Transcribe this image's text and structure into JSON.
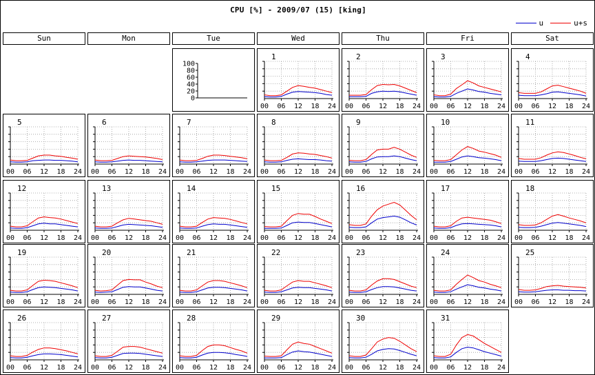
{
  "title": "CPU [%] - 2009/07 (15) [king]",
  "legend": [
    {
      "name": "u",
      "color": "#0000cc"
    },
    {
      "name": "u+s",
      "color": "#ee0000"
    }
  ],
  "weekdays": [
    "Sun",
    "Mon",
    "Tue",
    "Wed",
    "Thu",
    "Fri",
    "Sat"
  ],
  "first_weekday": 3,
  "key_cell": {
    "weekday": 2,
    "yticks": [
      "100",
      "80",
      "60",
      "40",
      "20",
      "0"
    ]
  },
  "x_ticks": [
    "00",
    "06",
    "12",
    "18",
    "24"
  ],
  "colors": {
    "u": "#0000cc",
    "us": "#ee0000",
    "grid": "#999999"
  },
  "chart_data": {
    "type": "line",
    "title": "CPU [%] - 2009/07 (15) [king]",
    "x": [
      0,
      2,
      4,
      6,
      8,
      10,
      12,
      14,
      16,
      18,
      20,
      22,
      24
    ],
    "ylim": [
      0,
      100
    ],
    "days": [
      {
        "day": "1",
        "u": [
          5,
          4,
          4,
          6,
          12,
          17,
          19,
          18,
          17,
          16,
          14,
          11,
          9
        ],
        "us": [
          10,
          8,
          8,
          10,
          20,
          30,
          35,
          33,
          30,
          28,
          24,
          20,
          16
        ]
      },
      {
        "day": "2",
        "u": [
          5,
          5,
          5,
          6,
          14,
          18,
          20,
          19,
          20,
          18,
          15,
          12,
          9
        ],
        "us": [
          9,
          9,
          9,
          11,
          24,
          35,
          38,
          37,
          38,
          34,
          28,
          22,
          16
        ]
      },
      {
        "day": "3",
        "u": [
          5,
          4,
          4,
          6,
          14,
          20,
          26,
          23,
          19,
          17,
          14,
          12,
          10
        ],
        "us": [
          10,
          8,
          8,
          12,
          27,
          37,
          48,
          42,
          34,
          30,
          26,
          22,
          18
        ]
      },
      {
        "day": "4",
        "u": [
          9,
          8,
          8,
          8,
          10,
          13,
          17,
          18,
          16,
          14,
          12,
          10,
          7
        ],
        "us": [
          16,
          14,
          14,
          14,
          18,
          26,
          34,
          36,
          32,
          28,
          24,
          20,
          14
        ]
      },
      {
        "day": "5",
        "u": [
          6,
          5,
          5,
          6,
          9,
          10,
          11,
          11,
          10,
          10,
          9,
          8,
          6
        ],
        "us": [
          11,
          9,
          9,
          10,
          16,
          22,
          24,
          24,
          22,
          21,
          18,
          16,
          13
        ]
      },
      {
        "day": "6",
        "u": [
          6,
          5,
          5,
          6,
          8,
          10,
          11,
          10,
          10,
          9,
          8,
          7,
          6
        ],
        "us": [
          11,
          9,
          9,
          10,
          15,
          20,
          22,
          21,
          20,
          19,
          17,
          15,
          12
        ]
      },
      {
        "day": "7",
        "u": [
          6,
          5,
          5,
          6,
          8,
          10,
          11,
          11,
          11,
          10,
          9,
          8,
          7
        ],
        "us": [
          11,
          9,
          9,
          10,
          15,
          21,
          24,
          24,
          23,
          21,
          19,
          17,
          14
        ]
      },
      {
        "day": "8",
        "u": [
          6,
          5,
          5,
          6,
          10,
          13,
          14,
          13,
          12,
          12,
          11,
          9,
          8
        ],
        "us": [
          11,
          9,
          9,
          10,
          18,
          27,
          30,
          29,
          27,
          26,
          23,
          20,
          16
        ]
      },
      {
        "day": "9",
        "u": [
          6,
          5,
          5,
          7,
          14,
          19,
          20,
          20,
          22,
          20,
          16,
          12,
          9
        ],
        "us": [
          10,
          9,
          9,
          12,
          26,
          38,
          40,
          40,
          45,
          40,
          32,
          24,
          18
        ]
      },
      {
        "day": "10",
        "u": [
          5,
          5,
          5,
          7,
          13,
          19,
          22,
          20,
          17,
          16,
          14,
          12,
          9
        ],
        "us": [
          10,
          9,
          9,
          12,
          25,
          38,
          47,
          42,
          35,
          32,
          28,
          24,
          18
        ]
      },
      {
        "day": "11",
        "u": [
          8,
          7,
          7,
          7,
          9,
          12,
          15,
          16,
          15,
          13,
          11,
          9,
          7
        ],
        "us": [
          15,
          13,
          13,
          13,
          17,
          24,
          30,
          33,
          31,
          27,
          23,
          18,
          14
        ]
      },
      {
        "day": "12",
        "u": [
          6,
          5,
          5,
          7,
          12,
          17,
          19,
          17,
          17,
          15,
          13,
          11,
          9
        ],
        "us": [
          11,
          9,
          9,
          12,
          23,
          33,
          36,
          34,
          33,
          30,
          26,
          22,
          18
        ]
      },
      {
        "day": "13",
        "u": [
          6,
          5,
          5,
          6,
          10,
          14,
          16,
          15,
          14,
          13,
          12,
          10,
          8
        ],
        "us": [
          11,
          9,
          9,
          11,
          20,
          28,
          32,
          30,
          28,
          26,
          24,
          20,
          16
        ]
      },
      {
        "day": "14",
        "u": [
          6,
          5,
          5,
          6,
          11,
          15,
          17,
          16,
          16,
          14,
          12,
          10,
          8
        ],
        "us": [
          11,
          9,
          9,
          11,
          21,
          30,
          34,
          33,
          32,
          29,
          25,
          21,
          17
        ]
      },
      {
        "day": "15",
        "u": [
          5,
          5,
          5,
          6,
          13,
          20,
          22,
          21,
          21,
          18,
          15,
          12,
          9
        ],
        "us": [
          10,
          9,
          9,
          11,
          26,
          40,
          45,
          43,
          43,
          37,
          30,
          24,
          18
        ]
      },
      {
        "day": "16",
        "u": [
          8,
          7,
          7,
          9,
          20,
          30,
          34,
          36,
          38,
          35,
          28,
          20,
          14
        ],
        "us": [
          15,
          13,
          13,
          17,
          38,
          55,
          65,
          70,
          75,
          68,
          54,
          40,
          28
        ]
      },
      {
        "day": "17",
        "u": [
          6,
          5,
          5,
          7,
          13,
          17,
          18,
          17,
          16,
          15,
          14,
          12,
          9
        ],
        "us": [
          11,
          9,
          9,
          12,
          24,
          33,
          35,
          33,
          31,
          29,
          27,
          23,
          18
        ]
      },
      {
        "day": "18",
        "u": [
          8,
          7,
          7,
          8,
          11,
          15,
          19,
          21,
          19,
          17,
          15,
          13,
          10
        ],
        "us": [
          15,
          13,
          13,
          14,
          20,
          29,
          38,
          42,
          38,
          33,
          29,
          25,
          20
        ]
      },
      {
        "day": "19",
        "u": [
          6,
          5,
          5,
          7,
          13,
          18,
          20,
          19,
          18,
          16,
          14,
          12,
          9
        ],
        "us": [
          11,
          9,
          9,
          12,
          24,
          35,
          38,
          37,
          35,
          31,
          27,
          23,
          18
        ]
      },
      {
        "day": "20",
        "u": [
          6,
          5,
          6,
          7,
          13,
          19,
          21,
          20,
          20,
          17,
          14,
          11,
          9
        ],
        "us": [
          11,
          9,
          10,
          12,
          25,
          37,
          40,
          39,
          39,
          33,
          28,
          22,
          18
        ]
      },
      {
        "day": "21",
        "u": [
          6,
          5,
          5,
          7,
          12,
          17,
          19,
          19,
          18,
          16,
          14,
          12,
          9
        ],
        "us": [
          11,
          9,
          9,
          12,
          23,
          33,
          37,
          37,
          35,
          31,
          27,
          23,
          18
        ]
      },
      {
        "day": "22",
        "u": [
          6,
          5,
          5,
          7,
          12,
          17,
          19,
          18,
          18,
          16,
          14,
          12,
          9
        ],
        "us": [
          11,
          9,
          9,
          12,
          23,
          33,
          37,
          35,
          35,
          31,
          27,
          23,
          18
        ]
      },
      {
        "day": "23",
        "u": [
          6,
          5,
          5,
          7,
          13,
          18,
          21,
          21,
          20,
          17,
          14,
          11,
          9
        ],
        "us": [
          11,
          9,
          9,
          12,
          25,
          36,
          42,
          42,
          40,
          34,
          28,
          22,
          18
        ]
      },
      {
        "day": "24",
        "u": [
          6,
          5,
          5,
          7,
          14,
          20,
          26,
          23,
          19,
          17,
          14,
          12,
          9
        ],
        "us": [
          11,
          9,
          9,
          12,
          27,
          40,
          52,
          45,
          37,
          33,
          27,
          23,
          18
        ]
      },
      {
        "day": "25",
        "u": [
          7,
          6,
          6,
          7,
          9,
          11,
          12,
          12,
          11,
          11,
          10,
          10,
          9
        ],
        "us": [
          13,
          11,
          11,
          12,
          16,
          21,
          23,
          24,
          22,
          21,
          20,
          19,
          17
        ]
      },
      {
        "day": "26",
        "u": [
          6,
          5,
          5,
          7,
          11,
          14,
          16,
          16,
          15,
          14,
          12,
          10,
          8
        ],
        "us": [
          11,
          9,
          9,
          12,
          21,
          28,
          32,
          32,
          30,
          27,
          24,
          20,
          16
        ]
      },
      {
        "day": "27",
        "u": [
          6,
          5,
          5,
          7,
          12,
          17,
          18,
          18,
          17,
          15,
          13,
          11,
          9
        ],
        "us": [
          11,
          9,
          9,
          12,
          23,
          34,
          36,
          36,
          34,
          30,
          26,
          22,
          18
        ]
      },
      {
        "day": "28",
        "u": [
          6,
          5,
          5,
          7,
          13,
          18,
          20,
          20,
          19,
          17,
          14,
          12,
          9
        ],
        "us": [
          11,
          9,
          9,
          12,
          25,
          36,
          40,
          40,
          38,
          33,
          28,
          24,
          18
        ]
      },
      {
        "day": "29",
        "u": [
          5,
          5,
          5,
          6,
          14,
          21,
          24,
          22,
          21,
          18,
          15,
          12,
          9
        ],
        "us": [
          10,
          9,
          9,
          11,
          27,
          42,
          48,
          44,
          42,
          36,
          30,
          24,
          18
        ]
      },
      {
        "day": "30",
        "u": [
          6,
          5,
          5,
          7,
          15,
          24,
          28,
          30,
          29,
          25,
          20,
          15,
          11
        ],
        "us": [
          11,
          9,
          9,
          13,
          30,
          48,
          56,
          60,
          58,
          50,
          40,
          30,
          22
        ]
      },
      {
        "day": "31",
        "u": [
          6,
          5,
          5,
          8,
          20,
          30,
          34,
          32,
          27,
          22,
          18,
          14,
          10
        ],
        "us": [
          11,
          9,
          9,
          15,
          40,
          60,
          68,
          64,
          54,
          44,
          36,
          28,
          20
        ]
      }
    ]
  }
}
